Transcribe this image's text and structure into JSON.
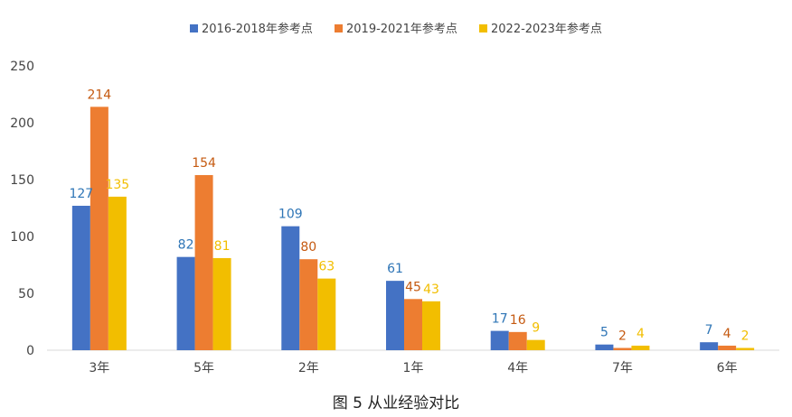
{
  "chart_data": {
    "type": "bar",
    "title": "图 5 从业经验对比",
    "xlabel": "",
    "ylabel": "",
    "ylim": [
      0,
      250
    ],
    "yticks": [
      0,
      50,
      100,
      150,
      200,
      250
    ],
    "grid": false,
    "legend_placement": "top-center",
    "categories": [
      "3年",
      "5年",
      "2年",
      "1年",
      "4年",
      "7年",
      "6年"
    ],
    "series": [
      {
        "name": "2016-2018年参考点",
        "color": "#4472C4",
        "label_color": "#2E75B6",
        "values": [
          127,
          82,
          109,
          61,
          17,
          5,
          7
        ]
      },
      {
        "name": "2019-2021年参考点",
        "color": "#ED7D31",
        "label_color": "#C55A11",
        "values": [
          214,
          154,
          80,
          45,
          16,
          2,
          4
        ]
      },
      {
        "name": "2022-2023年参考点",
        "color": "#F2BE00",
        "label_color": "#F2BE00",
        "values": [
          135,
          81,
          63,
          43,
          9,
          4,
          2
        ]
      }
    ]
  }
}
